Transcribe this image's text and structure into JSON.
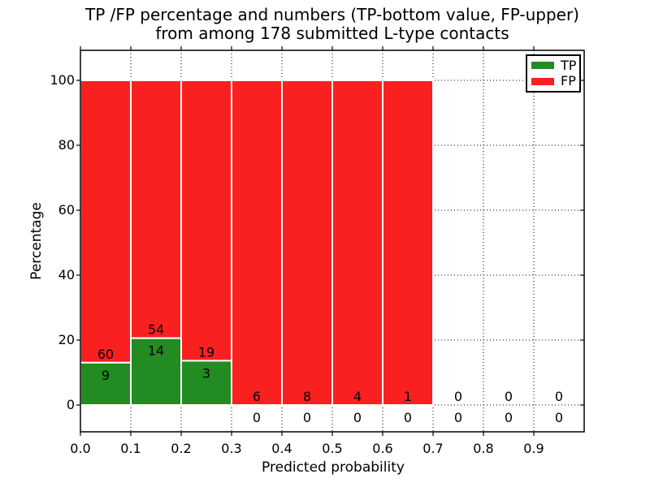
{
  "title": {
    "line1": "TP /FP percentage and numbers (TP-bottom value, FP-upper)",
    "line2": "from among 178 submitted L-type contacts"
  },
  "axes": {
    "x_label": "Predicted probability",
    "y_label": "Percentage",
    "x_tick_labels": [
      "0.0",
      "0.1",
      "0.2",
      "0.3",
      "0.4",
      "0.5",
      "0.6",
      "0.7",
      "0.8",
      "0.9"
    ],
    "y_tick_values": [
      0,
      20,
      40,
      60,
      80,
      100
    ]
  },
  "chart_data": {
    "type": "bar",
    "stacked": true,
    "title": "TP /FP percentage and numbers (TP-bottom value, FP-upper) from among 178 submitted L-type contacts",
    "xlabel": "Predicted probability",
    "ylabel": "Percentage",
    "xlim": [
      0.0,
      1.0
    ],
    "ylim": [
      -8,
      109
    ],
    "grid": true,
    "grid_style": "dotted",
    "legend_position": "upper right",
    "total_contacts": 178,
    "bin_width": 0.1,
    "series": [
      {
        "name": "TP",
        "color": "#228b22"
      },
      {
        "name": "FP",
        "color": "#fa2020"
      }
    ],
    "bins": [
      {
        "x_start": 0.0,
        "x_end": 0.1,
        "tp_count": 9,
        "fp_count": 60,
        "tp_pct": 13.04,
        "fp_pct": 86.96
      },
      {
        "x_start": 0.1,
        "x_end": 0.2,
        "tp_count": 14,
        "fp_count": 54,
        "tp_pct": 20.59,
        "fp_pct": 79.41
      },
      {
        "x_start": 0.2,
        "x_end": 0.3,
        "tp_count": 3,
        "fp_count": 19,
        "tp_pct": 13.64,
        "fp_pct": 86.36
      },
      {
        "x_start": 0.3,
        "x_end": 0.4,
        "tp_count": 0,
        "fp_count": 6,
        "tp_pct": 0,
        "fp_pct": 100
      },
      {
        "x_start": 0.4,
        "x_end": 0.5,
        "tp_count": 0,
        "fp_count": 8,
        "tp_pct": 0,
        "fp_pct": 100
      },
      {
        "x_start": 0.5,
        "x_end": 0.6,
        "tp_count": 0,
        "fp_count": 4,
        "tp_pct": 0,
        "fp_pct": 100
      },
      {
        "x_start": 0.6,
        "x_end": 0.7,
        "tp_count": 0,
        "fp_count": 1,
        "tp_pct": 0,
        "fp_pct": 100
      },
      {
        "x_start": 0.7,
        "x_end": 0.8,
        "tp_count": 0,
        "fp_count": 0,
        "tp_pct": 0,
        "fp_pct": 0
      },
      {
        "x_start": 0.8,
        "x_end": 0.9,
        "tp_count": 0,
        "fp_count": 0,
        "tp_pct": 0,
        "fp_pct": 0
      },
      {
        "x_start": 0.9,
        "x_end": 1.0,
        "tp_count": 0,
        "fp_count": 0,
        "tp_pct": 0,
        "fp_pct": 0
      }
    ]
  }
}
